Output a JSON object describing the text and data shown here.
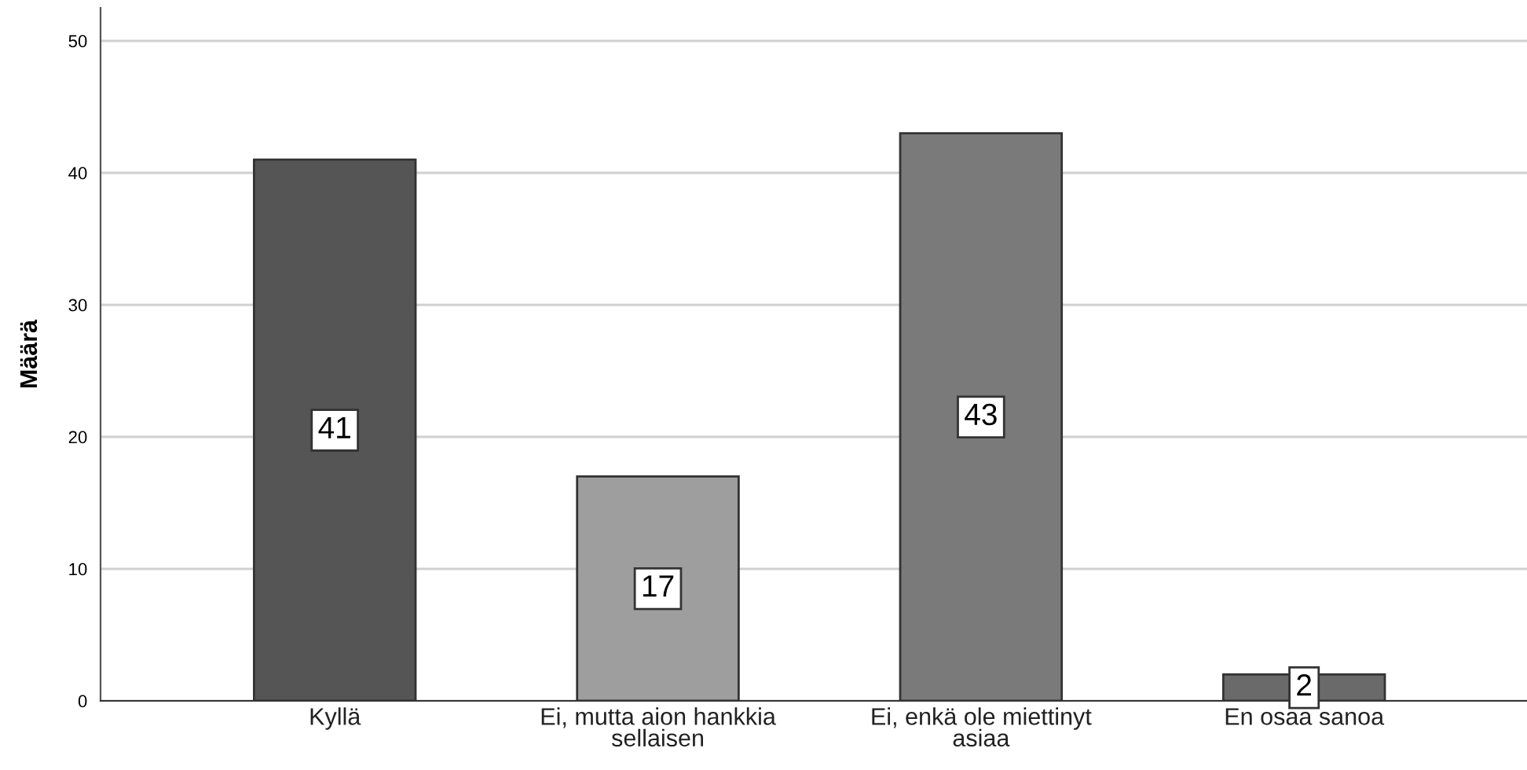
{
  "chart_data": {
    "type": "bar",
    "ylabel": "Määrä",
    "categories": [
      "Kyllä",
      "Ei, mutta aion hankkia\nsellaisen",
      "Ei, enkä ole miettinyt\nasiaa",
      "En osaa sanoa"
    ],
    "values": [
      41,
      17,
      43,
      2
    ],
    "colors": [
      "#555555",
      "#9e9e9e",
      "#7a7a7a",
      "#6a6a6a"
    ],
    "ylim": [
      0,
      52.5
    ],
    "yticks": [
      0,
      10,
      20,
      30,
      40,
      50
    ],
    "grid": "y",
    "data_labels": true
  }
}
